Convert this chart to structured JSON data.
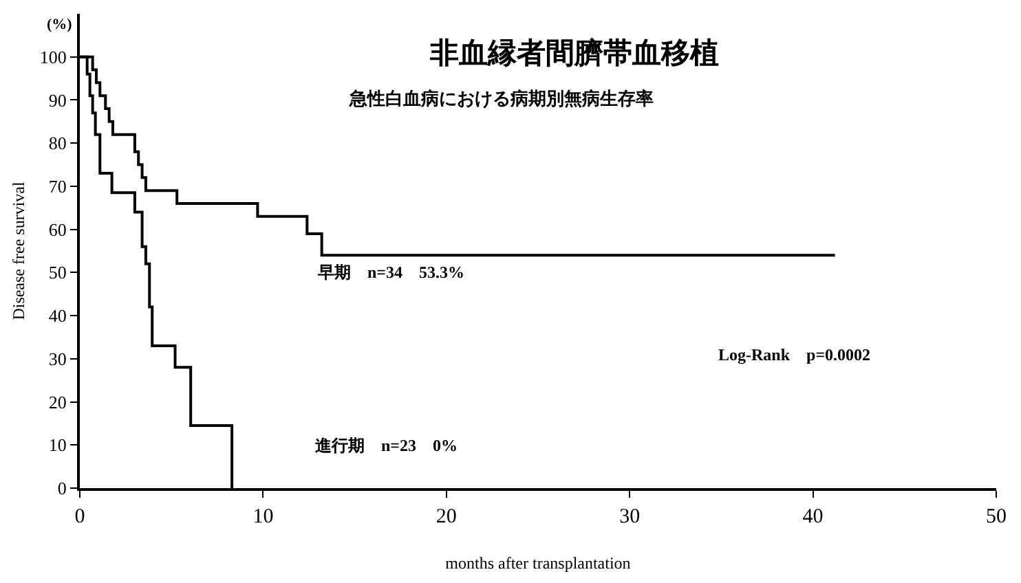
{
  "chart_data": {
    "type": "step",
    "title": "非血縁者間臍帯血移植",
    "subtitle": "急性白血病における病期別無病生存率",
    "xlabel": "months after transplantation",
    "ylabel": "Disease free survival",
    "series": [
      {
        "color": "#000000",
        "x": [
          0,
          0.7,
          0.9,
          1.1,
          1.4,
          1.6,
          1.8,
          3.0,
          3.2,
          3.4,
          3.6,
          5.3,
          9.7,
          12.4,
          13.2,
          41.2
        ],
        "values": [
          100,
          97,
          94,
          91,
          88,
          85,
          82,
          78,
          75,
          72,
          69,
          66,
          63,
          59,
          54,
          54
        ]
      },
      {
        "color": "#000000",
        "x": [
          0,
          0.4,
          0.55,
          0.7,
          0.85,
          1.1,
          1.75,
          3.0,
          3.4,
          3.6,
          3.8,
          3.95,
          5.2,
          6.05,
          8.3
        ],
        "values": [
          100,
          96,
          91,
          87,
          82,
          73,
          68.5,
          64,
          56,
          52,
          42,
          33,
          28,
          14.5,
          0
        ]
      }
    ],
    "annotations": [
      "(%)",
      "早期　n=34　53.3%",
      "進行期　n=23　0%",
      "Log-Rank　p=0.0002"
    ],
    "xlim": [
      0,
      50
    ],
    "xticks": [
      0,
      10,
      20,
      30,
      40,
      50
    ],
    "ylim": [
      0,
      110
    ],
    "yticks": [
      0,
      10,
      20,
      30,
      40,
      50,
      60,
      70,
      80,
      90,
      100
    ],
    "marker": "none",
    "line_style": "solid"
  }
}
